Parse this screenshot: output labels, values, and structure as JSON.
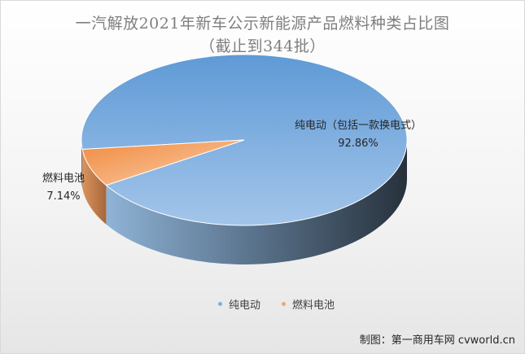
{
  "title_line1": "一汽解放2021年新车公示新能源产品燃料种类占比图",
  "title_line2": "（截止到344批）",
  "chart_data": {
    "type": "pie",
    "style": "3d",
    "slices": [
      {
        "name": "纯电动",
        "label": "纯电动（包括一款换电式）",
        "value": 92.86,
        "value_text": "92.86%",
        "color": "#7eaedd"
      },
      {
        "name": "燃料电池",
        "label": "燃料电池",
        "value": 7.14,
        "value_text": "7.14%",
        "color": "#f4a46a"
      }
    ],
    "legend": [
      "纯电动",
      "燃料电池"
    ],
    "legend_position": "bottom"
  },
  "credit": "制图：第一商用车网 cvworld.cn"
}
